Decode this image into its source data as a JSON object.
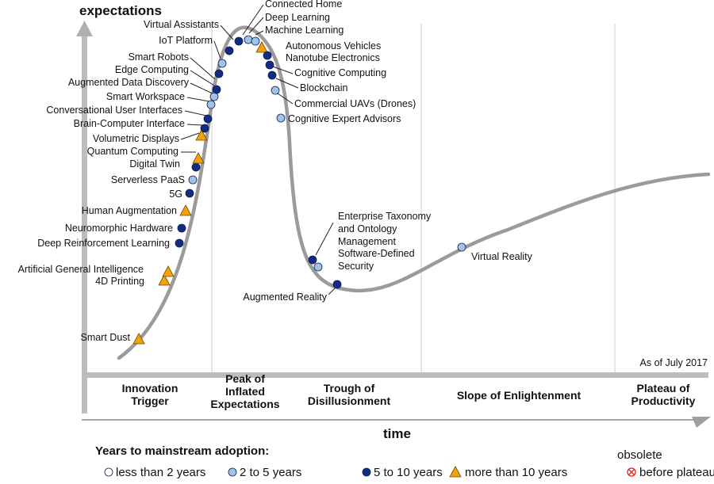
{
  "chart_data": {
    "type": "hype-cycle",
    "ylabel": "expectations",
    "xlabel": "time",
    "note": "As of July 2017",
    "phases": [
      "Innovation\nTrigger",
      "Peak of\nInflated\nExpectations",
      "Trough of\nDisillusionment",
      "Slope of Enlightenment",
      "Plateau of\nProductivity"
    ],
    "legend": {
      "title": "Years to mainstream adoption:",
      "items": [
        {
          "key": "lt2",
          "label": "less than 2 years",
          "marker": "circle",
          "color": "#ffffff"
        },
        {
          "key": "2to5",
          "label": "2 to 5 years",
          "marker": "circle",
          "color": "#9cc5ea"
        },
        {
          "key": "5to10",
          "label": "5 to 10 years",
          "marker": "circle",
          "color": "#0f2d82"
        },
        {
          "key": "gt10",
          "label": "more than 10 years",
          "marker": "triangle",
          "color": "#f5a20a"
        }
      ],
      "obsolete": {
        "line1": "obsolete",
        "line2": "before plateau",
        "color": "#e02020"
      }
    },
    "technologies": [
      {
        "name": "Smart Dust",
        "category": "gt10"
      },
      {
        "name": "4D Printing",
        "category": "gt10"
      },
      {
        "name": "Artificial General Intelligence",
        "category": "gt10"
      },
      {
        "name": "Deep Reinforcement Learning",
        "category": "5to10"
      },
      {
        "name": "Neuromorphic Hardware",
        "category": "5to10"
      },
      {
        "name": "Human Augmentation",
        "category": "gt10"
      },
      {
        "name": "5G",
        "category": "5to10"
      },
      {
        "name": "Serverless PaaS",
        "category": "2to5"
      },
      {
        "name": "Digital Twin",
        "category": "5to10"
      },
      {
        "name": "Quantum Computing",
        "category": "gt10"
      },
      {
        "name": "Volumetric Displays",
        "category": "gt10"
      },
      {
        "name": "Brain-Computer Interface",
        "category": "5to10"
      },
      {
        "name": "Conversational User Interfaces",
        "category": "5to10"
      },
      {
        "name": "Smart Workspace",
        "category": "2to5"
      },
      {
        "name": "Augmented Data Discovery",
        "category": "2to5"
      },
      {
        "name": "Edge Computing",
        "category": "5to10"
      },
      {
        "name": "Smart Robots",
        "category": "5to10"
      },
      {
        "name": "IoT Platform",
        "category": "2to5"
      },
      {
        "name": "Virtual Assistants",
        "category": "5to10"
      },
      {
        "name": "Connected Home",
        "category": "5to10"
      },
      {
        "name": "Deep Learning",
        "category": "2to5"
      },
      {
        "name": "Machine Learning",
        "category": "2to5"
      },
      {
        "name": "Autonomous Vehicles",
        "category": "gt10"
      },
      {
        "name": "Nanotube Electronics",
        "category": "5to10"
      },
      {
        "name": "Cognitive Computing",
        "category": "5to10"
      },
      {
        "name": "Blockchain",
        "category": "5to10"
      },
      {
        "name": "Commercial UAVs (Drones)",
        "category": "2to5"
      },
      {
        "name": "Cognitive Expert Advisors",
        "category": "2to5"
      },
      {
        "name": "Enterprise Taxonomy\nand Ontology\nManagement",
        "category": "5to10"
      },
      {
        "name": "Software-Defined\nSecurity",
        "category": "2to5"
      },
      {
        "name": "Augmented Reality",
        "category": "5to10"
      },
      {
        "name": "Virtual Reality",
        "category": "2to5"
      }
    ]
  }
}
